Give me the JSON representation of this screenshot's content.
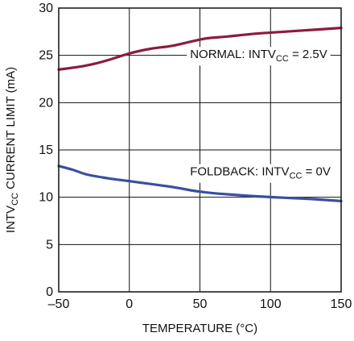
{
  "chart_data": {
    "type": "line",
    "title": "",
    "xlabel": "TEMPERATURE (°C)",
    "ylabel_main": "INTV",
    "ylabel_sub": "CC",
    "ylabel_rest": " CURRENT LIMIT (mA)",
    "xlim": [
      -50,
      150
    ],
    "ylim": [
      0,
      30
    ],
    "x_ticks": [
      -50,
      0,
      50,
      100,
      150
    ],
    "x_tick_labels": [
      "–50",
      "0",
      "50",
      "100",
      "150"
    ],
    "y_ticks": [
      0,
      5,
      10,
      15,
      20,
      25,
      30
    ],
    "y_tick_labels": [
      "0",
      "5",
      "10",
      "15",
      "20",
      "25",
      "30"
    ],
    "grid": true,
    "series": [
      {
        "name": "NORMAL",
        "color": "#8c1c3c",
        "x": [
          -50,
          -35,
          -25,
          -15,
          0,
          15,
          30,
          45,
          55,
          70,
          90,
          110,
          130,
          150
        ],
        "y": [
          23.5,
          23.8,
          24.1,
          24.5,
          25.2,
          25.7,
          26.0,
          26.5,
          26.8,
          27.0,
          27.3,
          27.5,
          27.7,
          27.9
        ]
      },
      {
        "name": "FOLDBACK",
        "color": "#3a4fa0",
        "x": [
          -50,
          -40,
          -30,
          -15,
          0,
          15,
          30,
          45,
          55,
          70,
          90,
          110,
          130,
          150
        ],
        "y": [
          13.3,
          12.9,
          12.4,
          12.0,
          11.7,
          11.4,
          11.1,
          10.7,
          10.5,
          10.3,
          10.1,
          9.95,
          9.8,
          9.6
        ]
      }
    ],
    "annotations": [
      {
        "series": "NORMAL",
        "prefix": "NORMAL: INTV",
        "sub": "CC",
        "suffix": " = 2.5V",
        "x": 43,
        "y": 24.7
      },
      {
        "series": "FOLDBACK",
        "prefix": "FOLDBACK: INTV",
        "sub": "CC",
        "suffix": " = 0V",
        "x": 43,
        "y": 12.3
      }
    ]
  }
}
